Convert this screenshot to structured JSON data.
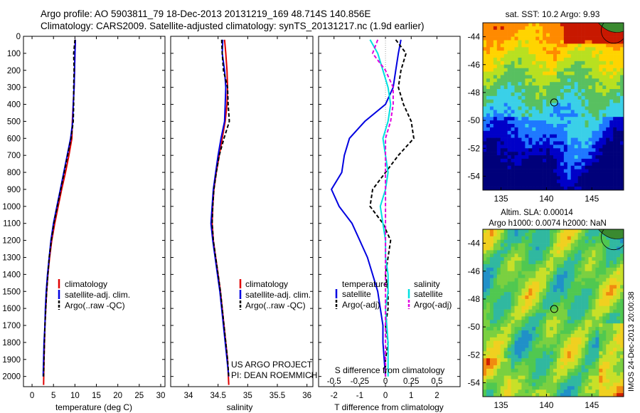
{
  "header": {
    "line1": "Argo profile: AO 5903811_79 18-Dec-2013 20131219_169 48.714S 140.856E",
    "line2": "Climatology: CARS2009. Satellite-adjusted climatology: synTS_20131217.nc (1.9d earlier)"
  },
  "side_label": "IMOS 24-Dec-2013 20:00:38",
  "colors": {
    "climatology": "#e00000",
    "satellite": "#0000e0",
    "argo": "#000000",
    "sat_salinity": "#00e0e0",
    "argo_salinity": "#e000e0"
  },
  "panel_notes": {
    "project": "US ARGO PROJECT",
    "pi": "PI: DEAN ROEMMICH"
  },
  "chart_data": [
    {
      "type": "line",
      "id": "temperature-profile",
      "xlabel": "temperature (deg C)",
      "xlim": [
        -2,
        31
      ],
      "ylim": [
        2060,
        0
      ],
      "xticks": [
        0,
        5,
        10,
        15,
        20,
        25,
        30
      ],
      "yticks": [
        0,
        100,
        200,
        300,
        400,
        500,
        600,
        700,
        800,
        900,
        1000,
        1100,
        1200,
        1300,
        1400,
        1500,
        1600,
        1700,
        1800,
        1900,
        2000
      ],
      "legend": [
        "climatology",
        "satellite-adj. clim.",
        "Argo(..raw -QC)"
      ],
      "series": [
        {
          "name": "climatology",
          "x": [
            10.1,
            10.0,
            9.9,
            9.8,
            9.6,
            9.4,
            9.3,
            8.6,
            7.8,
            6.9,
            6.1,
            5.3,
            4.6,
            4.1,
            3.7,
            3.4,
            3.2,
            3.0,
            2.9,
            2.8,
            2.7
          ],
          "y": [
            20,
            100,
            200,
            300,
            400,
            500,
            600,
            700,
            800,
            900,
            1000,
            1100,
            1200,
            1300,
            1400,
            1500,
            1600,
            1700,
            1800,
            1900,
            2050
          ]
        },
        {
          "name": "satellite-adj. clim.",
          "x": [
            10.1,
            10.0,
            9.9,
            9.8,
            9.6,
            9.5,
            9.0,
            8.2,
            7.4,
            6.6,
            5.8,
            5.0,
            4.4,
            4.0,
            3.6,
            3.3,
            3.1,
            3.0,
            2.8,
            2.7,
            2.6
          ],
          "y": [
            20,
            100,
            200,
            300,
            400,
            500,
            600,
            700,
            800,
            900,
            1000,
            1100,
            1200,
            1300,
            1400,
            1500,
            1600,
            1700,
            1800,
            1900,
            2000
          ]
        },
        {
          "name": "Argo(..raw -QC)",
          "x": [
            10.0,
            9.7,
            9.8,
            9.7,
            9.7,
            9.6,
            9.1,
            8.3,
            7.5,
            6.7,
            5.9,
            5.1,
            4.5,
            4.0,
            3.7,
            3.4,
            3.2,
            3.0,
            2.9,
            2.8,
            2.7
          ],
          "y": [
            20,
            100,
            200,
            300,
            400,
            500,
            600,
            700,
            800,
            900,
            1000,
            1100,
            1200,
            1300,
            1400,
            1500,
            1600,
            1700,
            1800,
            1900,
            2000
          ]
        }
      ]
    },
    {
      "type": "line",
      "id": "salinity-profile",
      "xlabel": "salinity",
      "xlim": [
        33.7,
        36.1
      ],
      "ylim": [
        2060,
        0
      ],
      "xticks": [
        34,
        34.5,
        35,
        35.5,
        36
      ],
      "legend": [
        "climatology",
        "satellite-adj. clim.",
        "Argo(..raw -QC)"
      ],
      "series": [
        {
          "name": "climatology",
          "x": [
            34.61,
            34.63,
            34.65,
            34.66,
            34.65,
            34.62,
            34.57,
            34.52,
            34.47,
            34.43,
            34.41,
            34.4,
            34.42,
            34.46,
            34.5,
            34.54,
            34.57,
            34.6,
            34.63,
            34.66,
            34.68
          ],
          "y": [
            20,
            100,
            200,
            300,
            400,
            500,
            600,
            700,
            800,
            900,
            1000,
            1100,
            1200,
            1300,
            1400,
            1500,
            1600,
            1700,
            1800,
            1900,
            2050
          ]
        },
        {
          "name": "satellite-adj. clim.",
          "x": [
            34.58,
            34.57,
            34.61,
            34.63,
            34.62,
            34.61,
            34.55,
            34.5,
            34.46,
            34.42,
            34.4,
            34.38,
            34.41,
            34.45,
            34.49,
            34.53,
            34.56,
            34.59,
            34.62,
            34.65,
            34.68
          ],
          "y": [
            20,
            100,
            200,
            300,
            400,
            500,
            600,
            700,
            800,
            900,
            1000,
            1100,
            1200,
            1300,
            1400,
            1500,
            1600,
            1700,
            1800,
            1900,
            2000
          ]
        },
        {
          "name": "Argo(..raw -QC)",
          "x": [
            34.56,
            34.57,
            34.59,
            34.66,
            34.67,
            34.69,
            34.6,
            34.52,
            34.47,
            34.43,
            34.41,
            34.4,
            34.42,
            34.46,
            34.5,
            34.54,
            34.57,
            34.6,
            34.63,
            34.66,
            34.68
          ],
          "y": [
            20,
            100,
            200,
            300,
            400,
            500,
            600,
            700,
            800,
            900,
            1000,
            1100,
            1200,
            1300,
            1400,
            1500,
            1600,
            1700,
            1800,
            1900,
            2000
          ]
        }
      ]
    },
    {
      "type": "line",
      "id": "difference-profile",
      "xlabel": "T difference from climatology",
      "top_axis_label": "S difference from climatology",
      "xlim": [
        -2.6,
        2.9
      ],
      "top_xlim": [
        -0.65,
        0.725
      ],
      "ylim": [
        2060,
        0
      ],
      "xticks": [
        -2,
        -1,
        0,
        1,
        2
      ],
      "top_xticks": [
        -0.5,
        -0.25,
        0,
        0.25,
        0.5
      ],
      "legend_groups": [
        {
          "heading": "temperature",
          "entries": [
            "satellite",
            "Argo(-adj)"
          ]
        },
        {
          "heading": "salinity",
          "entries": [
            "satellite",
            "Argo(-adj)"
          ]
        }
      ],
      "series": [
        {
          "name": "temperature satellite",
          "x": [
            0.6,
            0.5,
            0.4,
            0.3,
            0.0,
            -0.8,
            -1.4,
            -1.6,
            -1.7,
            -2.1,
            -1.8,
            -1.3,
            -1.0,
            -0.7,
            -0.5,
            -0.3,
            -0.2,
            -0.1,
            -0.1,
            -0.05,
            0.0
          ],
          "y": [
            20,
            100,
            200,
            300,
            400,
            500,
            600,
            700,
            800,
            900,
            1000,
            1100,
            1200,
            1300,
            1400,
            1500,
            1600,
            1700,
            1800,
            1900,
            2000
          ]
        },
        {
          "name": "temperature Argo(-adj)",
          "x": [
            0.4,
            0.8,
            0.6,
            0.5,
            0.7,
            1.0,
            1.1,
            0.5,
            0.0,
            -0.5,
            -0.6,
            -0.1,
            0.2,
            0.1,
            0.0,
            0.1,
            0.1,
            0.0,
            0.1,
            0.0,
            0.0
          ],
          "y": [
            20,
            100,
            200,
            300,
            400,
            500,
            600,
            700,
            800,
            900,
            1000,
            1100,
            1200,
            1300,
            1400,
            1500,
            1600,
            1700,
            1800,
            1900,
            2000
          ]
        },
        {
          "name": "salinity satellite",
          "x": [
            -0.6,
            -0.3,
            -0.1,
            0.1,
            0.2,
            0.1,
            -0.1,
            0.0,
            0.1,
            0.0,
            -0.2,
            -0.1,
            0.0,
            0.0,
            0.1,
            0.1,
            0.0,
            0.05,
            0.1,
            0.1,
            0.1
          ],
          "y": [
            20,
            100,
            200,
            300,
            400,
            500,
            600,
            700,
            800,
            900,
            1000,
            1100,
            1200,
            1300,
            1400,
            1500,
            1600,
            1700,
            1800,
            1900,
            2000
          ]
        },
        {
          "name": "salinity Argo(-adj)",
          "x": [
            -0.3,
            -0.5,
            0.0,
            0.3,
            0.3,
            0.2,
            0.0,
            0.0,
            0.0,
            0.0,
            0.0,
            0.0,
            0.0,
            0.0,
            0.0,
            0.0,
            0.0,
            0.0,
            0.0,
            0.0,
            0.0
          ],
          "y": [
            20,
            100,
            200,
            300,
            400,
            500,
            600,
            700,
            800,
            900,
            1000,
            1100,
            1200,
            1300,
            1400,
            1500,
            1600,
            1700,
            1800,
            1900,
            2000
          ]
        }
      ]
    },
    {
      "type": "heatmap",
      "id": "sst-map",
      "title": "sat. SST: 10.2  Argo: 9.93",
      "xlim": [
        133,
        148.5
      ],
      "ylim": [
        -55,
        -43
      ],
      "xticks": [
        135,
        140,
        145
      ],
      "yticks": [
        -44,
        -46,
        -48,
        -50,
        -52,
        -54
      ],
      "marker": {
        "lon": 140.856,
        "lat": -48.714
      }
    },
    {
      "type": "heatmap",
      "id": "sla-map",
      "title_line1": "Altim. SLA: 0.00014",
      "title_line2": "Argo h1000: 0.0074 h2000: NaN",
      "xlim": [
        133,
        148.5
      ],
      "ylim": [
        -55,
        -43
      ],
      "xticks": [
        135,
        140,
        145
      ],
      "yticks": [
        -44,
        -46,
        -48,
        -50,
        -52,
        -54
      ],
      "marker": {
        "lon": 140.856,
        "lat": -48.714
      }
    }
  ]
}
